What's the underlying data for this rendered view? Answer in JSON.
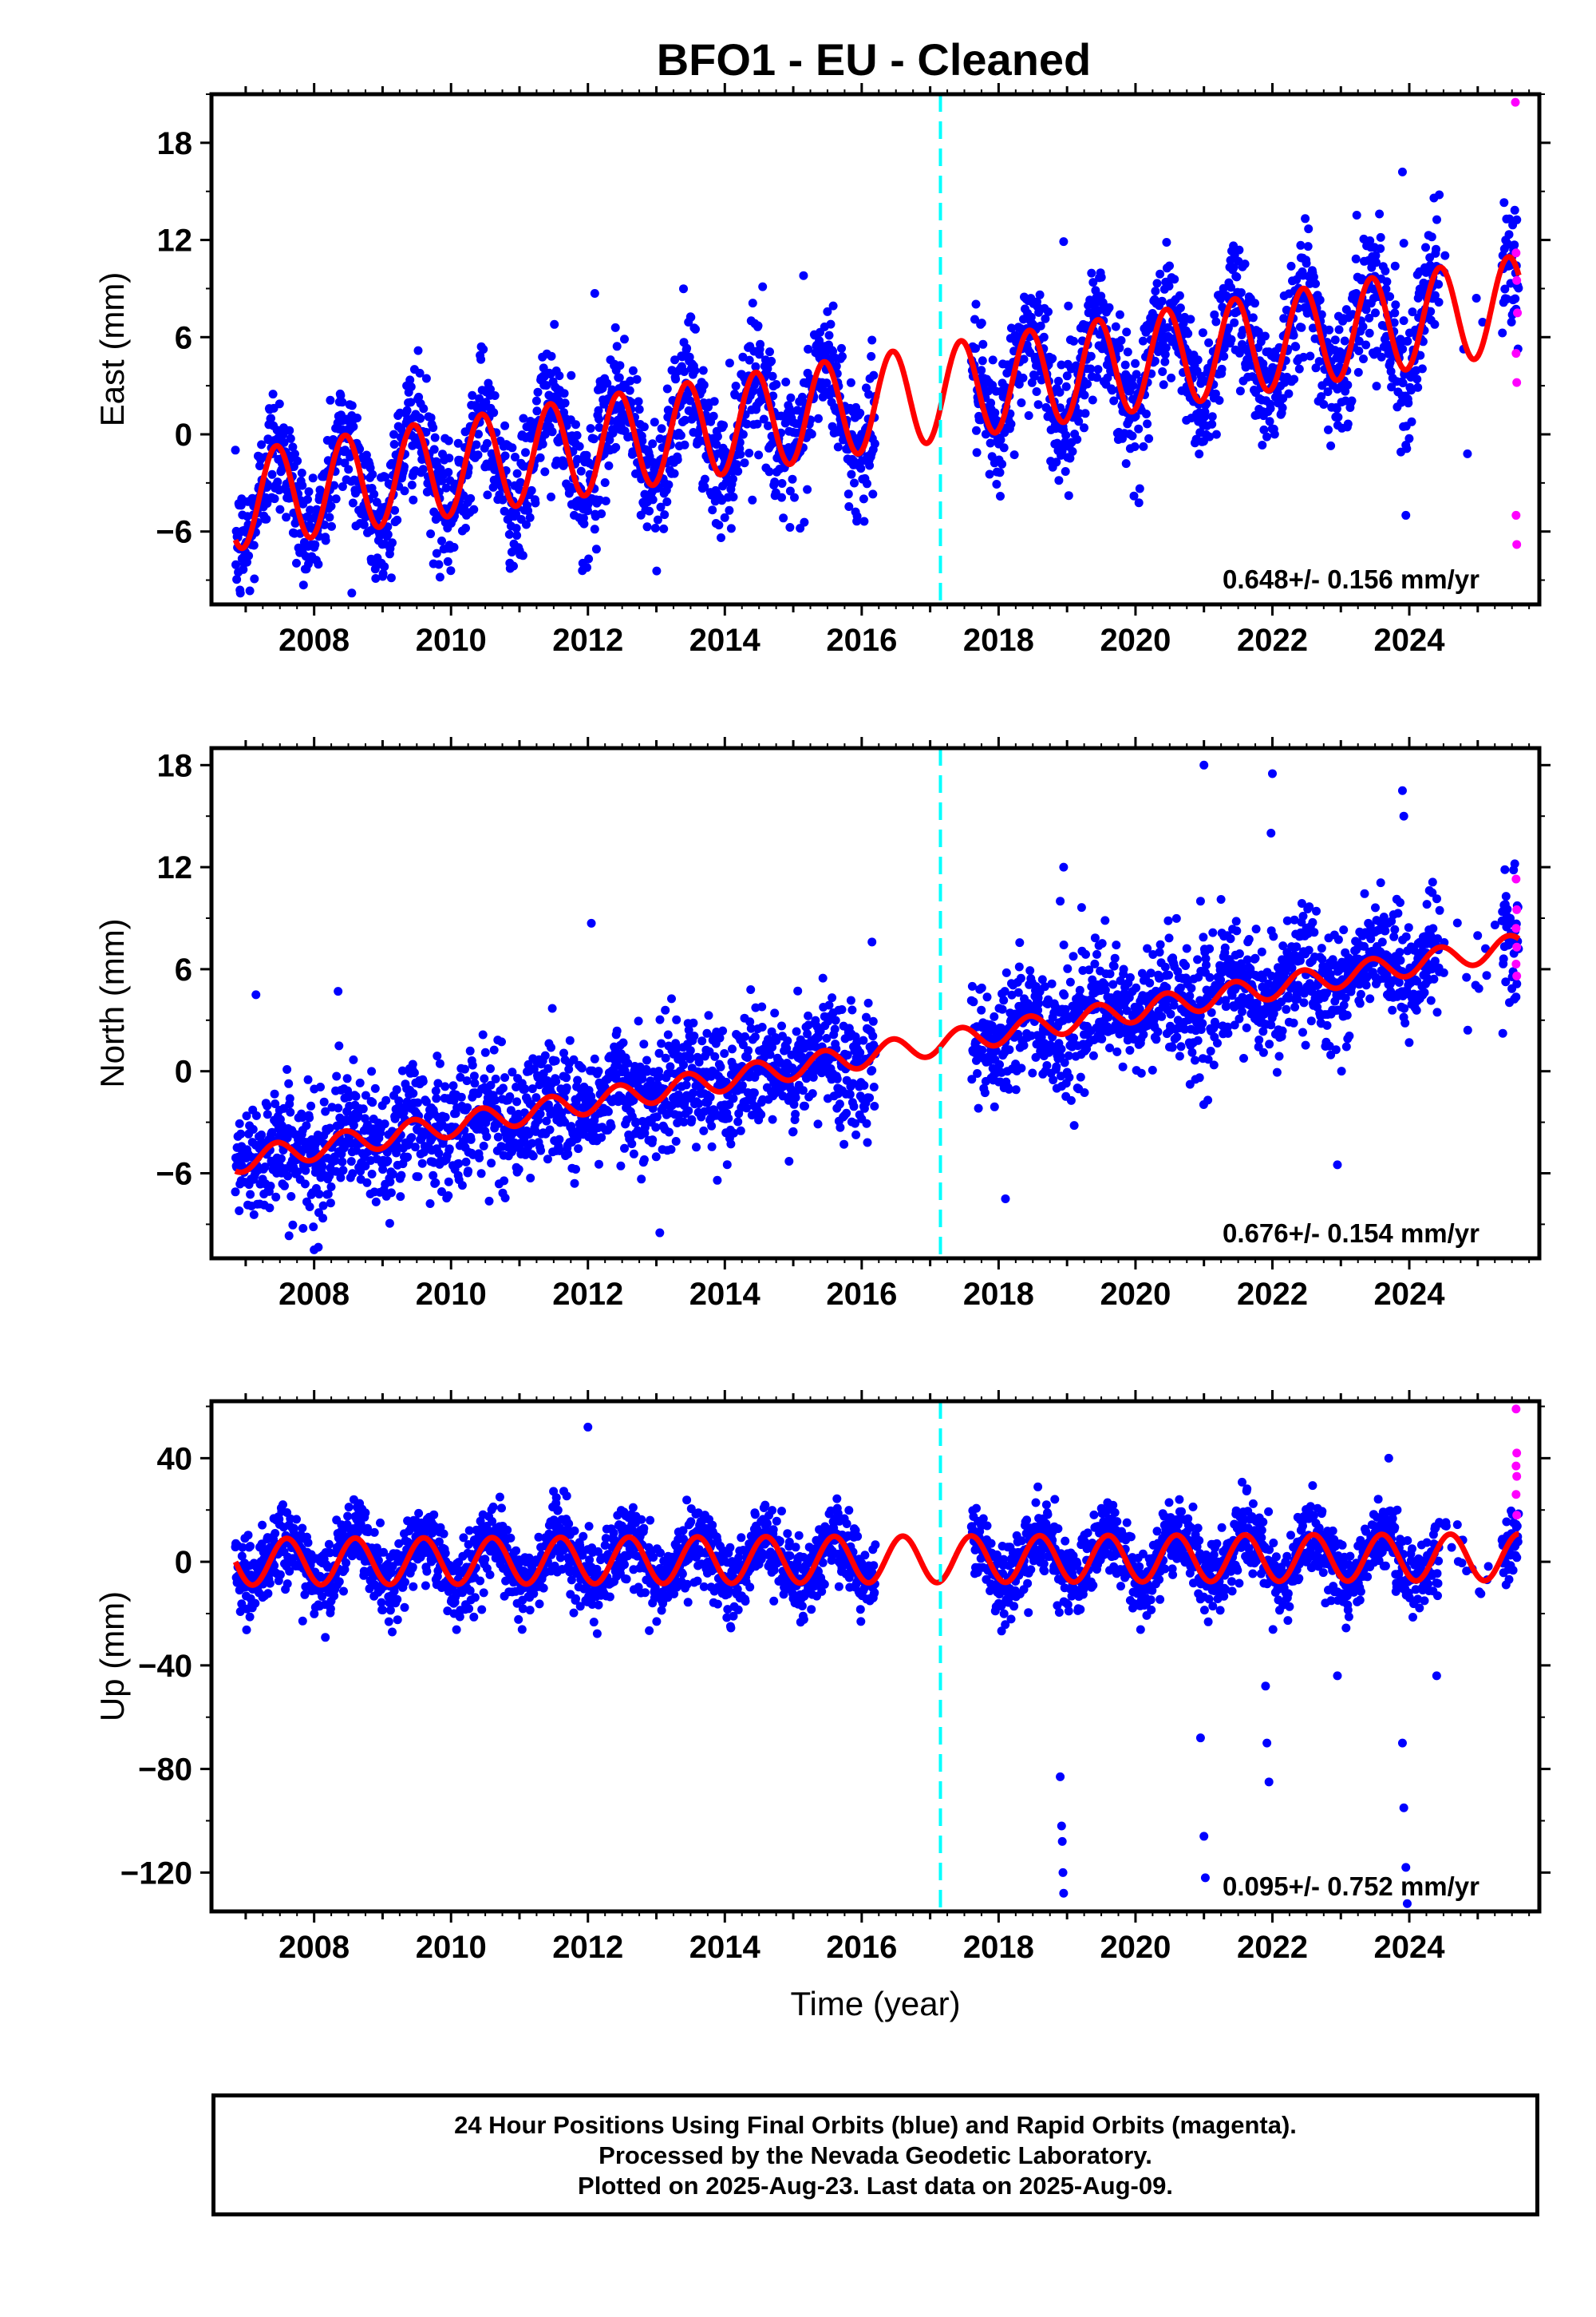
{
  "title": "BFO1  - EU - Cleaned",
  "colors": {
    "final_orbits": "#0000ff",
    "rapid_orbits": "#ff00ff",
    "model_fit": "#ff0000",
    "equipment_change": "#00ffff"
  },
  "chart_data": [
    {
      "type": "scatter",
      "ylabel": "East (mm)",
      "xlabel": "",
      "xlim": [
        2006.5,
        2025.9
      ],
      "ylim": [
        -10.5,
        21
      ],
      "yticks": [
        18,
        12,
        6,
        0,
        -6
      ],
      "xticks": [
        2008,
        2010,
        2012,
        2014,
        2016,
        2018,
        2020,
        2022,
        2024
      ],
      "rate_label": "0.648+/- 0.156 mm/yr",
      "equipment_change_year": 2017.15,
      "data_gap": [
        2016.2,
        2017.6
      ],
      "model": {
        "offset_at_2007": -4.0,
        "trend_mm_per_yr": 0.648,
        "annual_amplitude": 3.0,
        "annual_peak_phase": 0.45
      },
      "scatter_sd": 2.0,
      "rapid_points": [
        {
          "x": 2025.55,
          "y": 20.5
        },
        {
          "x": 2025.56,
          "y": 11.2
        },
        {
          "x": 2025.57,
          "y": 9.5
        },
        {
          "x": 2025.58,
          "y": 7.5
        },
        {
          "x": 2025.56,
          "y": 5.0
        },
        {
          "x": 2025.57,
          "y": 3.2
        },
        {
          "x": 2025.56,
          "y": -5.0
        },
        {
          "x": 2025.57,
          "y": -6.8
        }
      ],
      "outliers": [
        {
          "x": 2018.95,
          "y": 11.9
        },
        {
          "x": 2023.9,
          "y": 16.2
        },
        {
          "x": 2023.92,
          "y": 11.8
        },
        {
          "x": 2022.45,
          "y": 8.5
        },
        {
          "x": 2012.1,
          "y": 8.7
        },
        {
          "x": 2015.15,
          "y": 9.8
        },
        {
          "x": 2024.85,
          "y": -1.2
        },
        {
          "x": 2023.95,
          "y": -5.0
        },
        {
          "x": 2008.55,
          "y": -9.8
        },
        {
          "x": 2015.1,
          "y": -5.8
        }
      ]
    },
    {
      "type": "scatter",
      "ylabel": "North (mm)",
      "xlabel": "",
      "xlim": [
        2006.5,
        2025.9
      ],
      "ylim": [
        -11,
        19
      ],
      "yticks": [
        18,
        12,
        6,
        0,
        -6
      ],
      "xticks": [
        2008,
        2010,
        2012,
        2014,
        2016,
        2018,
        2020,
        2022,
        2024
      ],
      "rate_label": "0.676+/- 0.154 mm/yr",
      "equipment_change_year": 2017.15,
      "data_gap": [
        2016.2,
        2017.6
      ],
      "model": {
        "offset_at_2007": -5.2,
        "trend_mm_per_yr": 0.676,
        "annual_amplitude": 0.7,
        "annual_peak_phase": 0.45
      },
      "scatter_sd": 1.8,
      "rapid_points": [
        {
          "x": 2025.56,
          "y": 11.3
        },
        {
          "x": 2025.57,
          "y": 9.5
        },
        {
          "x": 2025.56,
          "y": 8.4
        },
        {
          "x": 2025.57,
          "y": 7.3
        },
        {
          "x": 2025.56,
          "y": 6.3
        },
        {
          "x": 2025.57,
          "y": 5.6
        }
      ],
      "outliers": [
        {
          "x": 2021.0,
          "y": 18.0
        },
        {
          "x": 2022.0,
          "y": 17.5
        },
        {
          "x": 2021.98,
          "y": 14.0
        },
        {
          "x": 2023.9,
          "y": 16.5
        },
        {
          "x": 2023.92,
          "y": 15.0
        },
        {
          "x": 2018.95,
          "y": 12.0
        },
        {
          "x": 2018.9,
          "y": 10.0
        },
        {
          "x": 2020.95,
          "y": 10.0
        },
        {
          "x": 2012.05,
          "y": 8.7
        },
        {
          "x": 2016.15,
          "y": 7.6
        },
        {
          "x": 2018.1,
          "y": -7.5
        },
        {
          "x": 2022.95,
          "y": -5.5
        },
        {
          "x": 2008.0,
          "y": -10.5
        },
        {
          "x": 2013.05,
          "y": -9.5
        },
        {
          "x": 2007.15,
          "y": 4.5
        },
        {
          "x": 2008.35,
          "y": 4.7
        }
      ]
    },
    {
      "type": "scatter",
      "ylabel": "Up (mm)",
      "xlabel": "Time (year)",
      "xlim": [
        2006.5,
        2025.9
      ],
      "ylim": [
        -135,
        62
      ],
      "yticks": [
        40,
        0,
        -40,
        -80,
        -120
      ],
      "xticks": [
        2008,
        2010,
        2012,
        2014,
        2016,
        2018,
        2020,
        2022,
        2024
      ],
      "rate_label": "0.095+/- 0.752 mm/yr",
      "equipment_change_year": 2017.15,
      "data_gap": [
        2016.2,
        2017.6
      ],
      "model": {
        "offset_at_2007": 0.0,
        "trend_mm_per_yr": 0.095,
        "annual_amplitude": 9.0,
        "annual_peak_phase": 0.6
      },
      "scatter_sd": 7.0,
      "rapid_points": [
        {
          "x": 2025.56,
          "y": 59
        },
        {
          "x": 2025.57,
          "y": 42
        },
        {
          "x": 2025.56,
          "y": 37
        },
        {
          "x": 2025.57,
          "y": 33
        },
        {
          "x": 2025.56,
          "y": 26
        },
        {
          "x": 2025.57,
          "y": 18
        }
      ],
      "outliers": [
        {
          "x": 2012.0,
          "y": 52
        },
        {
          "x": 2018.9,
          "y": -83
        },
        {
          "x": 2018.92,
          "y": -102
        },
        {
          "x": 2018.93,
          "y": -108
        },
        {
          "x": 2018.94,
          "y": -120
        },
        {
          "x": 2018.95,
          "y": -128
        },
        {
          "x": 2020.95,
          "y": -68
        },
        {
          "x": 2021.0,
          "y": -106
        },
        {
          "x": 2021.02,
          "y": -122
        },
        {
          "x": 2021.9,
          "y": -48
        },
        {
          "x": 2021.92,
          "y": -70
        },
        {
          "x": 2021.95,
          "y": -85
        },
        {
          "x": 2023.9,
          "y": -70
        },
        {
          "x": 2023.92,
          "y": -95
        },
        {
          "x": 2023.95,
          "y": -118
        },
        {
          "x": 2023.97,
          "y": -132
        },
        {
          "x": 2024.4,
          "y": -44
        },
        {
          "x": 2022.95,
          "y": -44
        },
        {
          "x": 2023.7,
          "y": 40
        }
      ]
    }
  ],
  "footer": {
    "line1": "24 Hour Positions Using Final Orbits (blue) and Rapid Orbits (magenta).",
    "line2": "Processed by the Nevada Geodetic Laboratory.",
    "line3": "Plotted on 2025-Aug-23. Last data on 2025-Aug-09."
  }
}
